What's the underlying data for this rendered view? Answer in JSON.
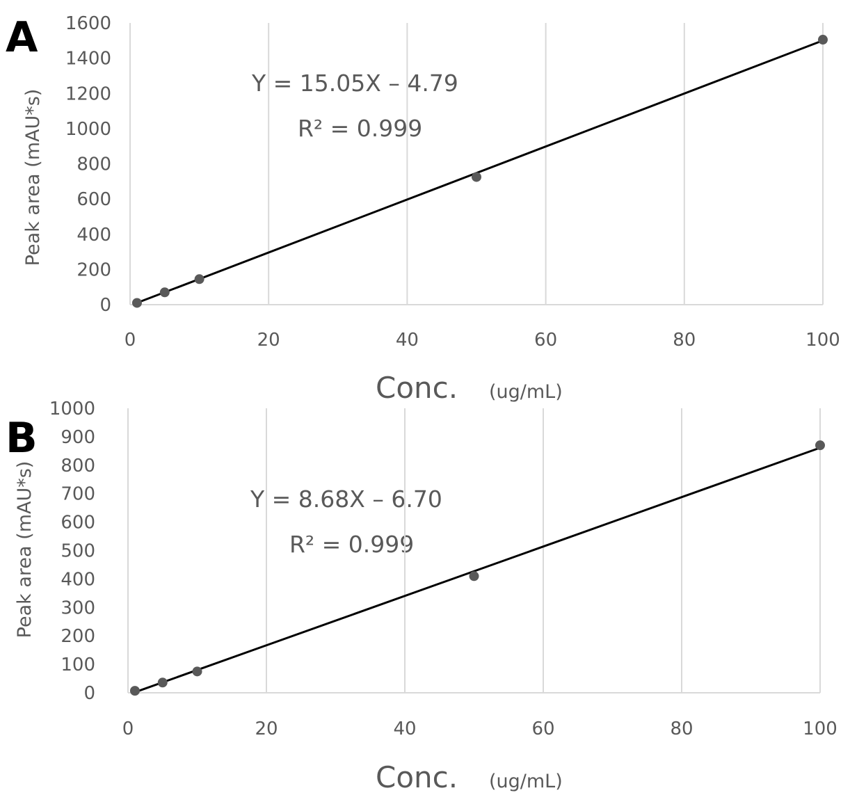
{
  "chart_data": [
    {
      "type": "scatter",
      "panel_label": "A",
      "xlabel": "Conc.",
      "xlabel_unit": "(ug/mL)",
      "ylabel": "Peak area  (mAU*s)",
      "xlim": [
        0,
        100
      ],
      "ylim": [
        0,
        1600
      ],
      "x_ticks": [
        0,
        20,
        40,
        60,
        80,
        100
      ],
      "y_ticks": [
        0,
        200,
        400,
        600,
        800,
        1000,
        1200,
        1400,
        1600
      ],
      "grid": "vertical",
      "points": {
        "x": [
          1,
          5,
          10,
          50,
          100
        ],
        "y": [
          10,
          70,
          145,
          725,
          1505
        ]
      },
      "trendline": {
        "slope": 15.05,
        "intercept": -4.79
      },
      "equation": "Y = 15.05X – 4.79",
      "r_squared": "R² = 0.999",
      "colors": {
        "point": "#595959",
        "line": "#000000",
        "grid": "#d9d9d9"
      }
    },
    {
      "type": "scatter",
      "panel_label": "B",
      "xlabel": "Conc.",
      "xlabel_unit": "(ug/mL)",
      "ylabel": "Peak area  (mAU*s)",
      "xlim": [
        0,
        100
      ],
      "ylim": [
        0,
        1000
      ],
      "x_ticks": [
        0,
        20,
        40,
        60,
        80,
        100
      ],
      "y_ticks": [
        0,
        100,
        200,
        300,
        400,
        500,
        600,
        700,
        800,
        900,
        1000
      ],
      "grid": "vertical",
      "points": {
        "x": [
          1,
          5,
          10,
          50,
          100
        ],
        "y": [
          7,
          36,
          75,
          410,
          870
        ]
      },
      "trendline": {
        "slope": 8.68,
        "intercept": -6.7
      },
      "equation": "Y = 8.68X – 6.70",
      "r_squared": "R² = 0.999",
      "colors": {
        "point": "#595959",
        "line": "#000000",
        "grid": "#d9d9d9"
      }
    }
  ]
}
